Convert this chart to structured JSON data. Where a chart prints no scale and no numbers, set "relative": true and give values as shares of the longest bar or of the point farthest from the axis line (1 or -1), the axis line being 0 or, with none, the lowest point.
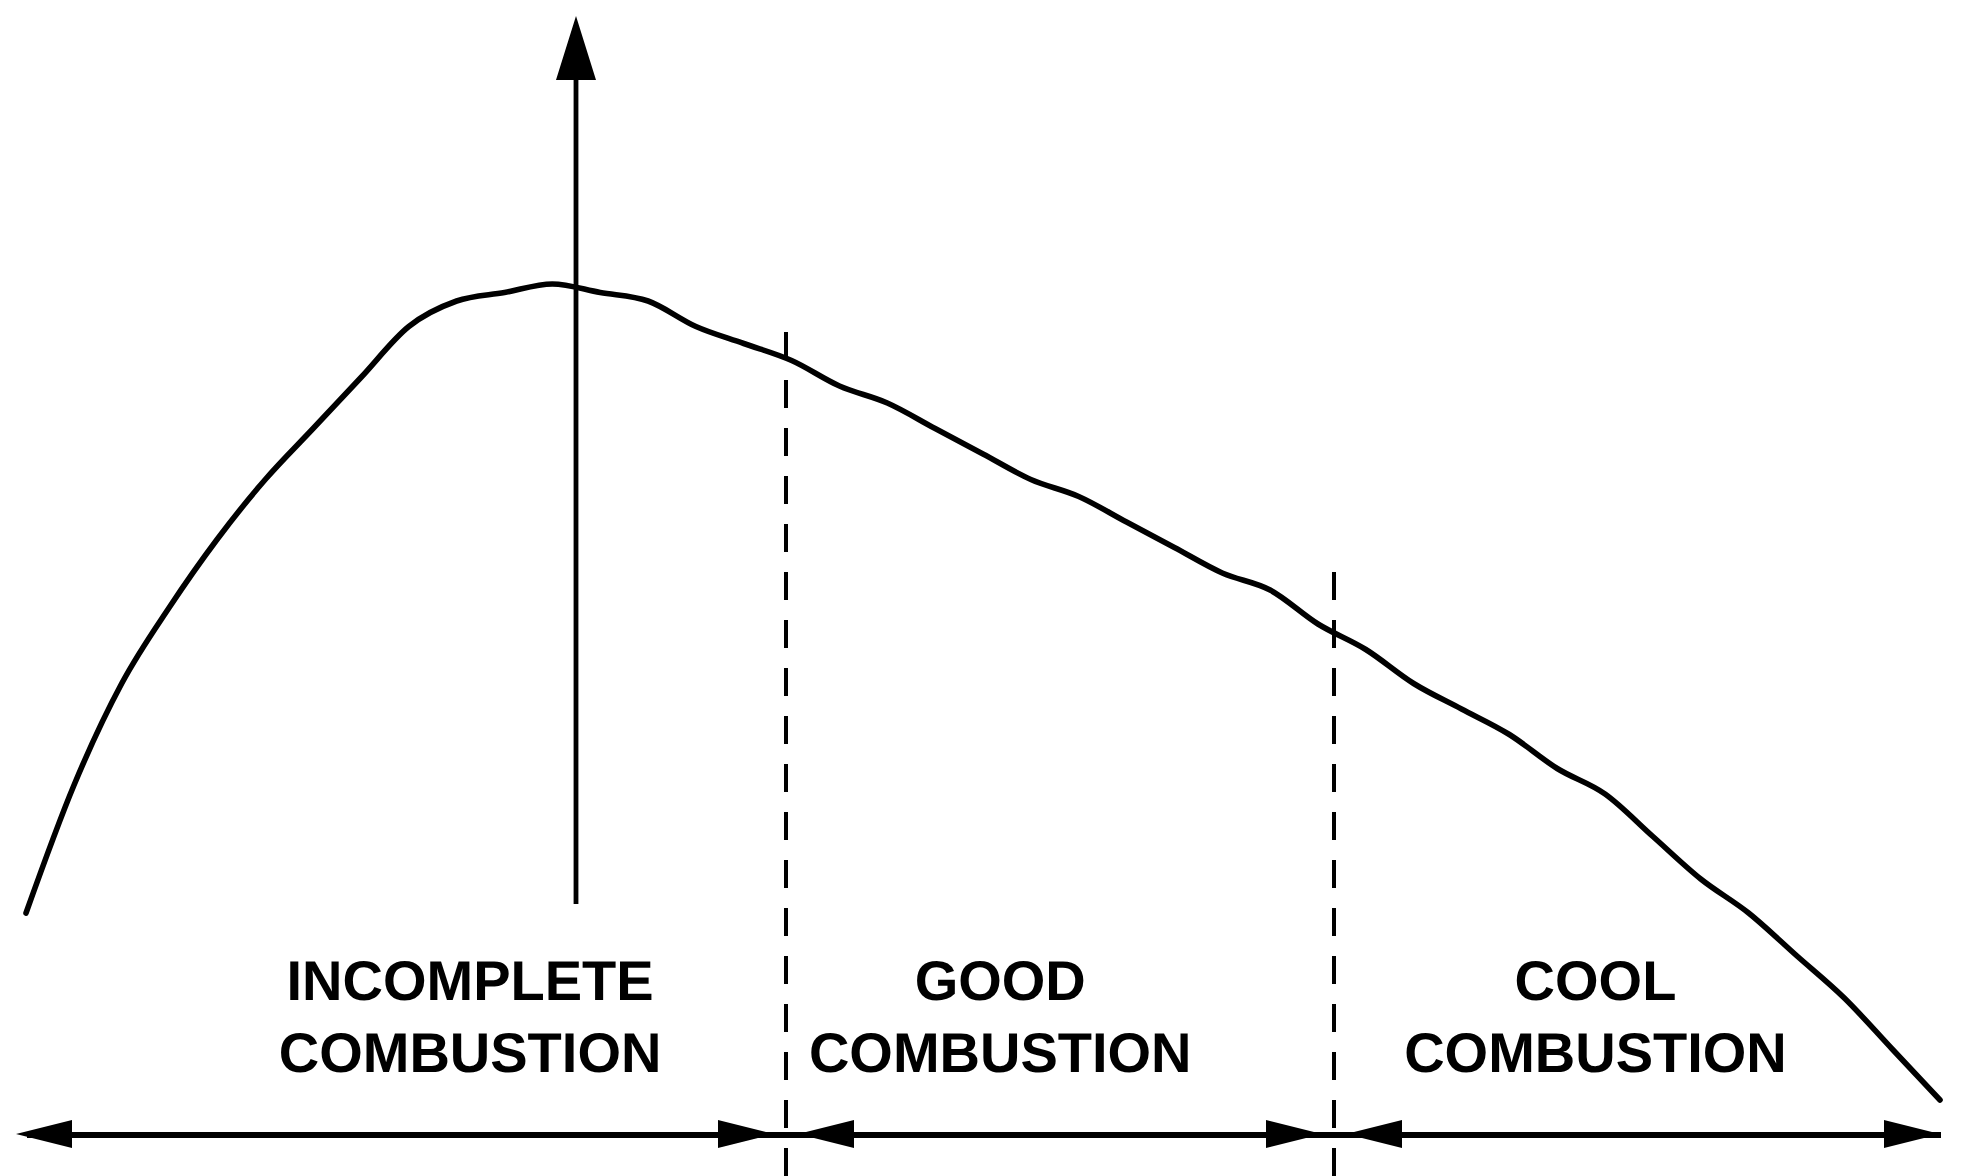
{
  "chart_data": {
    "type": "line",
    "relative": true,
    "categories": [
      null,
      null,
      null,
      null,
      null,
      null,
      null,
      null,
      null,
      null,
      null,
      null,
      null,
      null,
      null,
      null,
      null,
      null,
      null,
      null,
      null,
      null,
      null,
      null,
      null,
      null,
      null,
      null,
      null,
      null,
      null,
      null,
      null,
      null,
      null,
      null,
      null,
      null,
      null,
      null,
      null
    ],
    "series": [
      {
        "color": "#000000",
        "values": [
          0.26,
          0.41,
          0.53,
          0.62,
          0.7,
          0.77,
          0.83,
          0.89,
          0.95,
          0.98,
          0.99,
          1.0,
          0.99,
          0.98,
          0.95,
          0.93,
          0.91,
          0.88,
          0.86,
          0.83,
          0.8,
          0.77,
          0.75,
          0.72,
          0.69,
          0.66,
          0.64,
          0.6,
          0.57,
          0.53,
          0.5,
          0.47,
          0.43,
          0.4,
          0.35,
          0.3,
          0.26,
          0.21,
          0.16,
          0.1,
          0.04
        ]
      }
    ],
    "annotations": [
      "INCOMPLETE COMBUSTION",
      "GOOD COMBUSTION",
      "COOL COMBUSTION"
    ]
  }
}
